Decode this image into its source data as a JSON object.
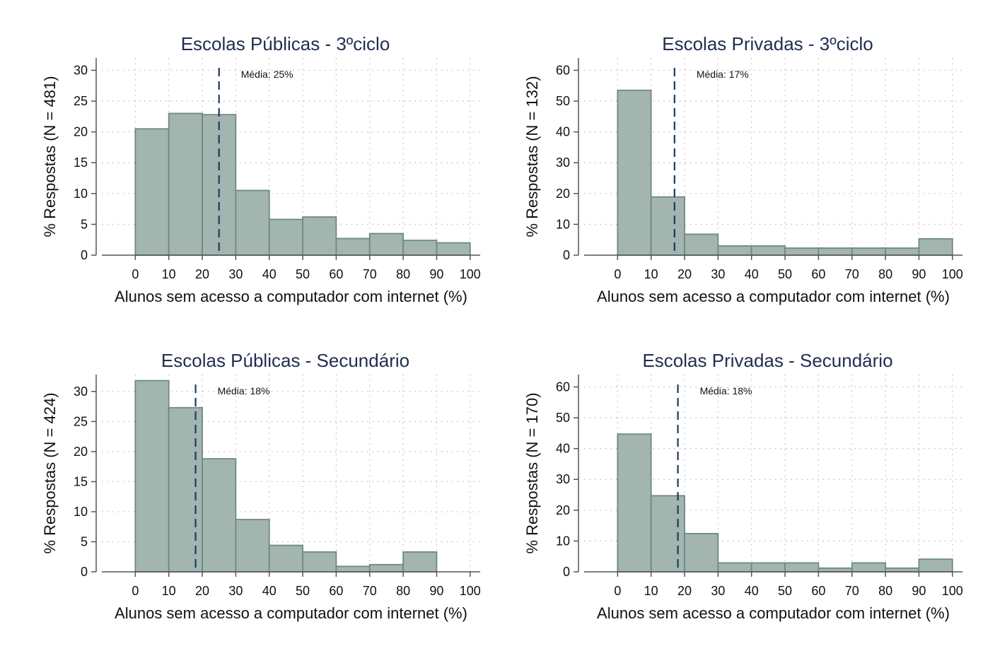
{
  "colors": {
    "bar_fill": "#a2b5ae",
    "bar_stroke": "#6e8a80",
    "mean_line": "#1f3a5f",
    "title": "#1f2f4f",
    "grid": "#b8b8b8"
  },
  "chart_data": [
    {
      "type": "bar",
      "title": "Escolas Públicas - 3ºciclo",
      "xlabel": "Alunos sem acesso a computador com internet (%)",
      "ylabel": "% Respostas (N = 481)",
      "bin_edges": [
        0,
        10,
        20,
        30,
        40,
        50,
        60,
        70,
        80,
        90,
        100
      ],
      "values": [
        20.5,
        23,
        22.8,
        10.5,
        5.8,
        6.2,
        2.7,
        3.5,
        2.4,
        2
      ],
      "xlim": [
        -10,
        103
      ],
      "ylim": [
        0,
        32
      ],
      "xticks": [
        0,
        10,
        20,
        30,
        40,
        50,
        60,
        70,
        80,
        90,
        100
      ],
      "yticks": [
        0,
        5,
        10,
        15,
        20,
        25,
        30
      ],
      "mean": 25,
      "mean_label": "Média:  25%",
      "grid": true
    },
    {
      "type": "bar",
      "title": "Escolas Privadas - 3ºciclo",
      "xlabel": "Alunos sem acesso a computador com internet (%)",
      "ylabel": "% Respostas (N = 132)",
      "bin_edges": [
        0,
        10,
        20,
        30,
        40,
        50,
        60,
        70,
        80,
        90,
        100
      ],
      "values": [
        53.5,
        18.9,
        6.8,
        3,
        3,
        2.3,
        2.3,
        2.3,
        2.3,
        5.3
      ],
      "xlim": [
        -10,
        103
      ],
      "ylim": [
        0,
        64
      ],
      "xticks": [
        0,
        10,
        20,
        30,
        40,
        50,
        60,
        70,
        80,
        90,
        100
      ],
      "yticks": [
        0,
        10,
        20,
        30,
        40,
        50,
        60
      ],
      "mean": 17,
      "mean_label": "Média:  17%",
      "grid": true
    },
    {
      "type": "bar",
      "title": "Escolas Públicas - Secundário",
      "xlabel": "Alunos sem acesso a computador com internet (%)",
      "ylabel": "% Respostas (N = 424)",
      "bin_edges": [
        0,
        10,
        20,
        30,
        40,
        50,
        60,
        70,
        80,
        90,
        100
      ],
      "values": [
        31.8,
        27.3,
        18.8,
        8.7,
        4.4,
        3.3,
        0.9,
        1.2,
        3.3,
        0
      ],
      "xlim": [
        -10,
        103
      ],
      "ylim": [
        0,
        32.8
      ],
      "xticks": [
        0,
        10,
        20,
        30,
        40,
        50,
        60,
        70,
        80,
        90,
        100
      ],
      "yticks": [
        0,
        5,
        10,
        15,
        20,
        25,
        30
      ],
      "mean": 18,
      "mean_label": "Média:  18%",
      "grid": true
    },
    {
      "type": "bar",
      "title": "Escolas Privadas - Secundário",
      "xlabel": "Alunos sem acesso a computador com internet (%)",
      "ylabel": "% Respostas (N = 170)",
      "bin_edges": [
        0,
        10,
        20,
        30,
        40,
        50,
        60,
        70,
        80,
        90,
        100
      ],
      "values": [
        44.7,
        24.7,
        12.4,
        2.9,
        2.9,
        2.9,
        1.2,
        2.9,
        1.2,
        4.1
      ],
      "xlim": [
        -10,
        103
      ],
      "ylim": [
        0,
        64
      ],
      "xticks": [
        0,
        10,
        20,
        30,
        40,
        50,
        60,
        70,
        80,
        90,
        100
      ],
      "yticks": [
        0,
        10,
        20,
        30,
        40,
        50,
        60
      ],
      "mean": 18,
      "mean_label": "Média:  18%",
      "grid": true
    }
  ]
}
